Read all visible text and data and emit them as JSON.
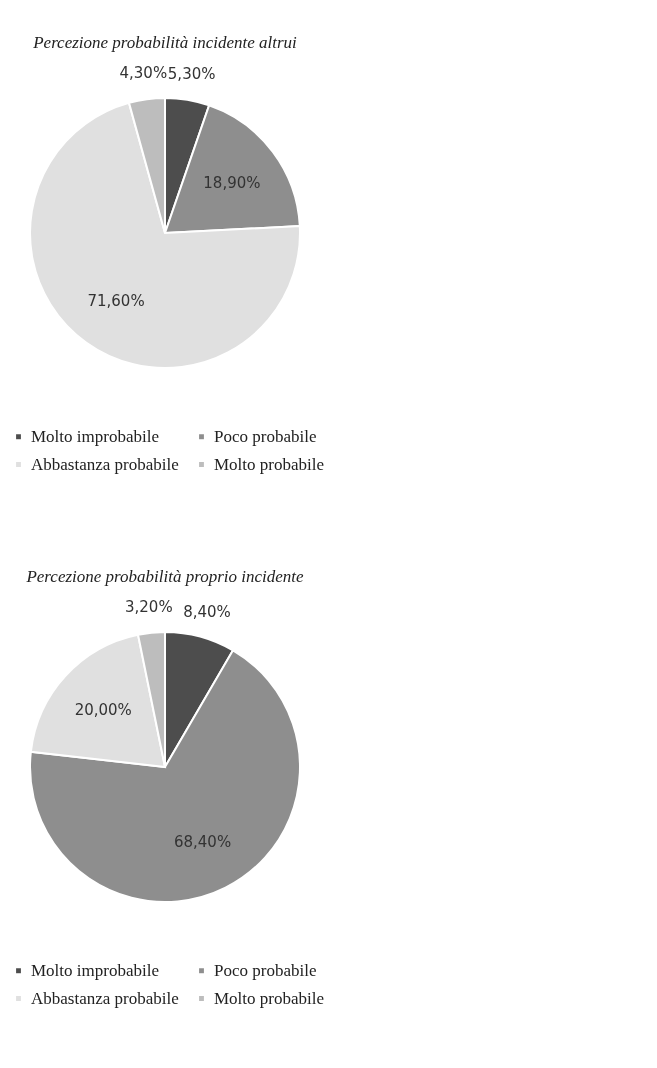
{
  "chart_data": [
    {
      "type": "pie",
      "title": "Percezione probabilità incidente altrui",
      "categories": [
        "Molto improbabile",
        "Poco probabile",
        "Abbastanza probabile",
        "Molto probabile"
      ],
      "values": [
        5.3,
        18.9,
        71.6,
        4.3
      ],
      "value_labels": [
        "5,30%",
        "18,90%",
        "71,60%",
        "4,30%"
      ],
      "colors": [
        "#4d4d4d",
        "#8e8e8e",
        "#e0e0e0",
        "#bdbdbd"
      ],
      "legend": "bottom"
    },
    {
      "type": "pie",
      "title": "Percezione probabilità proprio incidente",
      "categories": [
        "Molto improbabile",
        "Poco probabile",
        "Abbastanza probabile",
        "Molto probabile"
      ],
      "values": [
        8.4,
        68.4,
        20.0,
        3.2
      ],
      "value_labels": [
        "8,40%",
        "68,40%",
        "20,00%",
        "3,20%"
      ],
      "colors": [
        "#4d4d4d",
        "#8e8e8e",
        "#e0e0e0",
        "#bdbdbd"
      ],
      "legend": "bottom"
    }
  ]
}
